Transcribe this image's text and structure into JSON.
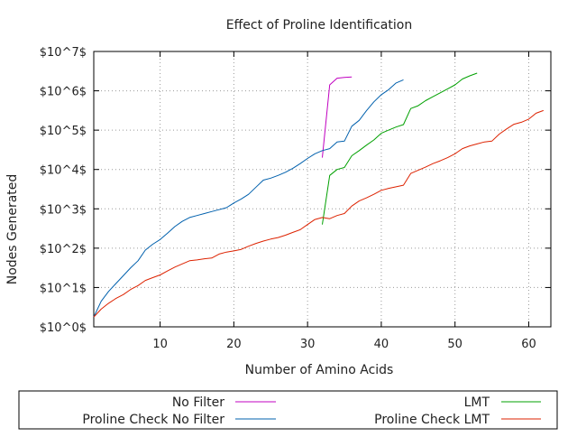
{
  "chart_data": {
    "type": "line",
    "title": "Effect of Proline Identification",
    "xlabel": "Number of Amino Acids",
    "ylabel": "Nodes Generated",
    "xlim": [
      1,
      63
    ],
    "ylim": [
      0,
      7
    ],
    "y_scale": "log10",
    "grid": true,
    "legend_position": "bottom",
    "x_ticks": [
      10,
      20,
      30,
      40,
      50,
      60
    ],
    "x_tick_labels": [
      "10",
      "20",
      "30",
      "40",
      "50",
      "60"
    ],
    "y_ticks": [
      0,
      1,
      2,
      3,
      4,
      5,
      6,
      7
    ],
    "y_tick_labels": [
      "$10^0$",
      "$10^1$",
      "$10^2$",
      "$10^3$",
      "$10^4$",
      "$10^5$",
      "$10^6$",
      "$10^7$"
    ],
    "series": [
      {
        "name": "No Filter",
        "color": "#c000c0",
        "points": [
          [
            32,
            4.3
          ],
          [
            33,
            6.15
          ],
          [
            34,
            6.32
          ],
          [
            35,
            6.34
          ],
          [
            36,
            6.35
          ]
        ]
      },
      {
        "name": "Proline Check No Filter",
        "color": "#0060ad",
        "points": [
          [
            1,
            0.25
          ],
          [
            2,
            0.65
          ],
          [
            3,
            0.9
          ],
          [
            4,
            1.1
          ],
          [
            5,
            1.3
          ],
          [
            6,
            1.5
          ],
          [
            7,
            1.68
          ],
          [
            8,
            1.95
          ],
          [
            9,
            2.1
          ],
          [
            10,
            2.22
          ],
          [
            11,
            2.38
          ],
          [
            12,
            2.55
          ],
          [
            13,
            2.68
          ],
          [
            14,
            2.78
          ],
          [
            15,
            2.83
          ],
          [
            16,
            2.88
          ],
          [
            17,
            2.93
          ],
          [
            18,
            2.98
          ],
          [
            19,
            3.03
          ],
          [
            20,
            3.15
          ],
          [
            21,
            3.25
          ],
          [
            22,
            3.37
          ],
          [
            23,
            3.55
          ],
          [
            24,
            3.73
          ],
          [
            25,
            3.78
          ],
          [
            26,
            3.85
          ],
          [
            27,
            3.93
          ],
          [
            28,
            4.03
          ],
          [
            29,
            4.15
          ],
          [
            30,
            4.28
          ],
          [
            31,
            4.4
          ],
          [
            32,
            4.48
          ],
          [
            33,
            4.53
          ],
          [
            34,
            4.7
          ],
          [
            35,
            4.72
          ],
          [
            36,
            5.1
          ],
          [
            37,
            5.25
          ],
          [
            38,
            5.5
          ],
          [
            39,
            5.72
          ],
          [
            40,
            5.9
          ],
          [
            41,
            6.03
          ],
          [
            42,
            6.2
          ],
          [
            43,
            6.28
          ]
        ]
      },
      {
        "name": "LMT",
        "color": "#00a000",
        "points": [
          [
            32,
            2.6
          ],
          [
            33,
            3.85
          ],
          [
            34,
            4.0
          ],
          [
            35,
            4.05
          ],
          [
            36,
            4.35
          ],
          [
            37,
            4.48
          ],
          [
            38,
            4.62
          ],
          [
            39,
            4.75
          ],
          [
            40,
            4.92
          ],
          [
            41,
            5.0
          ],
          [
            42,
            5.08
          ],
          [
            43,
            5.14
          ],
          [
            44,
            5.55
          ],
          [
            45,
            5.62
          ],
          [
            46,
            5.75
          ],
          [
            47,
            5.85
          ],
          [
            48,
            5.95
          ],
          [
            49,
            6.05
          ],
          [
            50,
            6.15
          ],
          [
            51,
            6.3
          ],
          [
            52,
            6.38
          ],
          [
            53,
            6.45
          ]
        ]
      },
      {
        "name": "Proline Check LMT",
        "color": "#dd2200",
        "points": [
          [
            1,
            0.25
          ],
          [
            2,
            0.45
          ],
          [
            3,
            0.6
          ],
          [
            4,
            0.72
          ],
          [
            5,
            0.82
          ],
          [
            6,
            0.95
          ],
          [
            7,
            1.05
          ],
          [
            8,
            1.18
          ],
          [
            9,
            1.25
          ],
          [
            10,
            1.32
          ],
          [
            11,
            1.42
          ],
          [
            12,
            1.52
          ],
          [
            13,
            1.6
          ],
          [
            14,
            1.68
          ],
          [
            15,
            1.7
          ],
          [
            16,
            1.73
          ],
          [
            17,
            1.75
          ],
          [
            18,
            1.85
          ],
          [
            19,
            1.9
          ],
          [
            20,
            1.93
          ],
          [
            21,
            1.97
          ],
          [
            22,
            2.05
          ],
          [
            23,
            2.12
          ],
          [
            24,
            2.18
          ],
          [
            25,
            2.23
          ],
          [
            26,
            2.27
          ],
          [
            27,
            2.33
          ],
          [
            28,
            2.4
          ],
          [
            29,
            2.47
          ],
          [
            30,
            2.6
          ],
          [
            31,
            2.73
          ],
          [
            32,
            2.78
          ],
          [
            33,
            2.75
          ],
          [
            34,
            2.83
          ],
          [
            35,
            2.88
          ],
          [
            36,
            3.07
          ],
          [
            37,
            3.2
          ],
          [
            38,
            3.28
          ],
          [
            39,
            3.37
          ],
          [
            40,
            3.47
          ],
          [
            41,
            3.52
          ],
          [
            42,
            3.56
          ],
          [
            43,
            3.6
          ],
          [
            44,
            3.9
          ],
          [
            45,
            3.98
          ],
          [
            46,
            4.06
          ],
          [
            47,
            4.15
          ],
          [
            48,
            4.22
          ],
          [
            49,
            4.3
          ],
          [
            50,
            4.4
          ],
          [
            51,
            4.53
          ],
          [
            52,
            4.6
          ],
          [
            53,
            4.65
          ],
          [
            54,
            4.7
          ],
          [
            55,
            4.72
          ],
          [
            56,
            4.9
          ],
          [
            57,
            5.03
          ],
          [
            58,
            5.15
          ],
          [
            59,
            5.2
          ],
          [
            60,
            5.28
          ],
          [
            61,
            5.43
          ],
          [
            62,
            5.5
          ]
        ]
      }
    ]
  }
}
